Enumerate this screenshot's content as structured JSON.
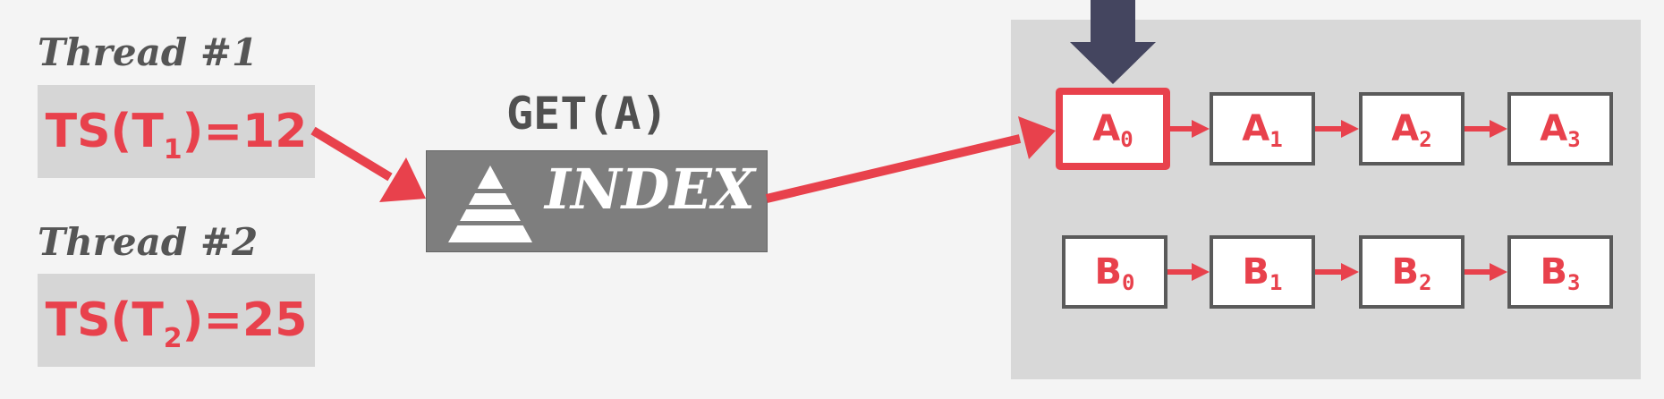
{
  "threads": [
    {
      "label": "Thread #1",
      "ts_prefix": "TS(T",
      "ts_sub": "1",
      "ts_suffix": ")=12"
    },
    {
      "label": "Thread #2",
      "ts_prefix": "TS(T",
      "ts_sub": "2",
      "ts_suffix": ")=25"
    }
  ],
  "get_label": "GET(A)",
  "index_label": "INDEX",
  "rows": [
    {
      "letter": "A",
      "versions": [
        "0",
        "1",
        "2",
        "3"
      ]
    },
    {
      "letter": "B",
      "versions": [
        "0",
        "1",
        "2",
        "3"
      ]
    }
  ],
  "colors": {
    "accent": "#e8414c",
    "pointer": "#44455f",
    "index_bg": "#7e7e7e",
    "ts_bg": "#d6d6d6",
    "area_bg": "#d8d8d8"
  },
  "icons": {
    "index": "pyramid-icon",
    "pointer": "down-arrow-icon"
  }
}
